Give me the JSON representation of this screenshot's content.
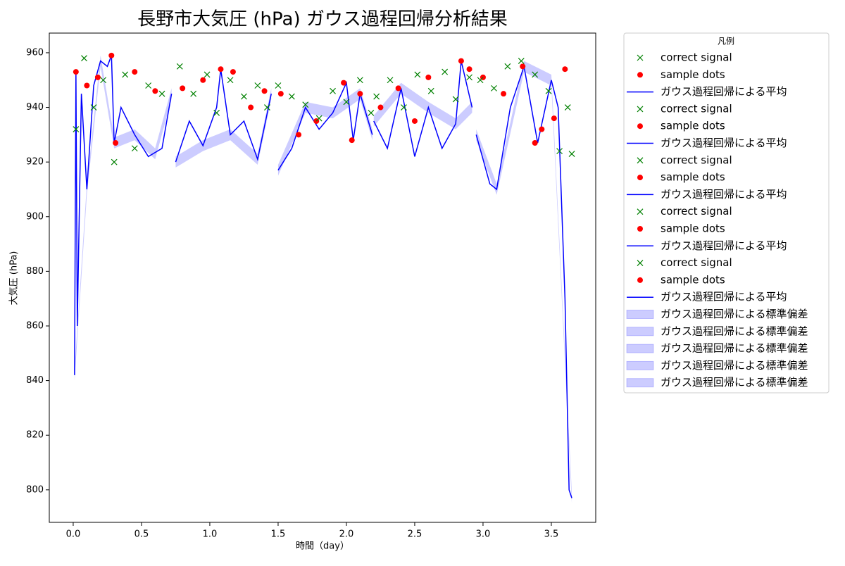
{
  "chart_data": {
    "type": "gp_regression",
    "title": "長野市大気圧 (hPa) ガウス過程回帰分析結果",
    "x_label": "時間（day）",
    "y_label": "大気圧 (hPa)",
    "legend_title": "凡例",
    "legend_position": "outside upper right",
    "xlim": [
      -0.175,
      3.825
    ],
    "ylim": [
      788.1,
      967.2
    ],
    "xticks": [
      {
        "value": 0,
        "label": "0.0"
      },
      0.5,
      {
        "value": 1,
        "label": "1.0"
      },
      1.5,
      {
        "value": 2,
        "label": "2.0"
      },
      2.5,
      {
        "value": 3,
        "label": "3.0"
      },
      3.5
    ],
    "yticks": [
      800,
      820,
      840,
      860,
      880,
      900,
      920,
      940,
      960
    ],
    "series": [
      {
        "name": "correct signal",
        "kind": "cross",
        "color": "#008000",
        "x": [
          0.02,
          0.08,
          0.15,
          0.22,
          0.3,
          0.38,
          0.45,
          0.55,
          0.65
        ],
        "values": [
          932,
          958,
          940,
          950,
          920,
          952,
          925,
          948,
          945
        ]
      },
      {
        "name": "sample dots",
        "kind": "dot",
        "color": "#ff0000",
        "x": [
          0.02,
          0.1,
          0.18,
          0.28,
          0.31,
          0.45,
          0.6
        ],
        "values": [
          953,
          948,
          951,
          959,
          927,
          953,
          946
        ]
      },
      {
        "name": "ガウス過程回帰による平均",
        "kind": "line",
        "color": "#0000ff",
        "x": [
          0.01,
          0.02,
          0.03,
          0.06,
          0.1,
          0.15,
          0.2,
          0.25,
          0.28,
          0.3,
          0.35,
          0.45,
          0.55,
          0.65,
          0.72
        ],
        "values": [
          842,
          953,
          860,
          945,
          910,
          948,
          957,
          955,
          959,
          927,
          940,
          930,
          922,
          925,
          945
        ]
      },
      {
        "name": "correct signal",
        "kind": "cross",
        "color": "#008000",
        "x": [
          0.78,
          0.88,
          0.98,
          1.05,
          1.15,
          1.25,
          1.35,
          1.42
        ],
        "values": [
          955,
          945,
          952,
          938,
          950,
          944,
          948,
          940
        ]
      },
      {
        "name": "sample dots",
        "kind": "dot",
        "color": "#ff0000",
        "x": [
          0.8,
          0.95,
          1.08,
          1.17,
          1.3,
          1.4
        ],
        "values": [
          947,
          950,
          954,
          953,
          940,
          946
        ]
      },
      {
        "name": "ガウス過程回帰による平均",
        "kind": "line",
        "color": "#0000ff",
        "x": [
          0.75,
          0.85,
          0.95,
          1.05,
          1.08,
          1.15,
          1.25,
          1.35,
          1.45
        ],
        "values": [
          920,
          935,
          926,
          940,
          954,
          930,
          935,
          921,
          945
        ]
      },
      {
        "name": "correct signal",
        "kind": "cross",
        "color": "#008000",
        "x": [
          1.5,
          1.6,
          1.7,
          1.8,
          1.9,
          2.0,
          2.1,
          2.18
        ],
        "values": [
          948,
          944,
          941,
          936,
          946,
          942,
          950,
          938
        ]
      },
      {
        "name": "sample dots",
        "kind": "dot",
        "color": "#ff0000",
        "x": [
          1.52,
          1.65,
          1.78,
          1.98,
          2.04,
          2.1
        ],
        "values": [
          945,
          930,
          935,
          949,
          928,
          945
        ]
      },
      {
        "name": "ガウス過程回帰による平均",
        "kind": "line",
        "color": "#0000ff",
        "x": [
          1.5,
          1.6,
          1.7,
          1.8,
          1.9,
          2.0,
          2.05,
          2.1,
          2.19
        ],
        "values": [
          917,
          925,
          940,
          932,
          938,
          949,
          928,
          945,
          930
        ]
      },
      {
        "name": "correct signal",
        "kind": "cross",
        "color": "#008000",
        "x": [
          2.22,
          2.32,
          2.42,
          2.52,
          2.62,
          2.72,
          2.8,
          2.9
        ],
        "values": [
          944,
          950,
          940,
          952,
          946,
          953,
          943,
          951
        ]
      },
      {
        "name": "sample dots",
        "kind": "dot",
        "color": "#ff0000",
        "x": [
          2.25,
          2.38,
          2.5,
          2.6,
          2.84,
          2.9
        ],
        "values": [
          940,
          947,
          935,
          951,
          957,
          954
        ]
      },
      {
        "name": "ガウス過程回帰による平均",
        "kind": "line",
        "color": "#0000ff",
        "x": [
          2.2,
          2.3,
          2.4,
          2.5,
          2.6,
          2.7,
          2.8,
          2.84,
          2.92
        ],
        "values": [
          935,
          925,
          947,
          922,
          940,
          925,
          934,
          957,
          940
        ]
      },
      {
        "name": "correct signal",
        "kind": "cross",
        "color": "#008000",
        "x": [
          2.98,
          3.08,
          3.18,
          3.28,
          3.38,
          3.48,
          3.56,
          3.62,
          3.65
        ],
        "values": [
          950,
          947,
          955,
          957,
          952,
          946,
          924,
          940,
          923
        ]
      },
      {
        "name": "sample dots",
        "kind": "dot",
        "color": "#ff0000",
        "x": [
          3.0,
          3.15,
          3.29,
          3.38,
          3.43,
          3.52,
          3.6
        ],
        "values": [
          951,
          945,
          955,
          927,
          932,
          936,
          954
        ]
      },
      {
        "name": "ガウス過程回帰による平均",
        "kind": "line",
        "color": "#0000ff",
        "x": [
          2.95,
          3.05,
          3.1,
          3.2,
          3.3,
          3.4,
          3.5,
          3.55,
          3.6,
          3.63,
          3.65
        ],
        "values": [
          930,
          912,
          910,
          940,
          955,
          927,
          950,
          940,
          870,
          800,
          797
        ]
      },
      {
        "name": "ガウス過程回帰による標準偏差",
        "kind": "band",
        "color": "#0000ff",
        "x": [
          0.01,
          0.1,
          0.2,
          0.3,
          0.45,
          0.6,
          0.72
        ],
        "lower": [
          840,
          908,
          955,
          925,
          928,
          921,
          943
        ],
        "upper": [
          844,
          912,
          959,
          929,
          932,
          925,
          947
        ]
      },
      {
        "name": "ガウス過程回帰による標準偏差",
        "kind": "band",
        "color": "#0000ff",
        "x": [
          0.75,
          0.95,
          1.15,
          1.35,
          1.45
        ],
        "lower": [
          918,
          924,
          928,
          919,
          943
        ],
        "upper": [
          922,
          928,
          932,
          923,
          947
        ]
      },
      {
        "name": "ガウス過程回帰による標準偏差",
        "kind": "band",
        "color": "#0000ff",
        "x": [
          1.5,
          1.7,
          1.9,
          2.1,
          2.19
        ],
        "lower": [
          915,
          938,
          936,
          943,
          928
        ],
        "upper": [
          919,
          942,
          940,
          947,
          932
        ]
      },
      {
        "name": "ガウス過程回帰による標準偏差",
        "kind": "band",
        "color": "#0000ff",
        "x": [
          2.2,
          2.4,
          2.6,
          2.8,
          2.92
        ],
        "lower": [
          933,
          945,
          938,
          932,
          938
        ],
        "upper": [
          937,
          949,
          942,
          936,
          942
        ]
      },
      {
        "name": "ガウス過程回帰による標準偏差",
        "kind": "band",
        "color": "#0000ff",
        "x": [
          2.95,
          3.1,
          3.3,
          3.5,
          3.65
        ],
        "lower": [
          928,
          908,
          953,
          948,
          795
        ],
        "upper": [
          932,
          912,
          957,
          952,
          799
        ]
      }
    ]
  }
}
